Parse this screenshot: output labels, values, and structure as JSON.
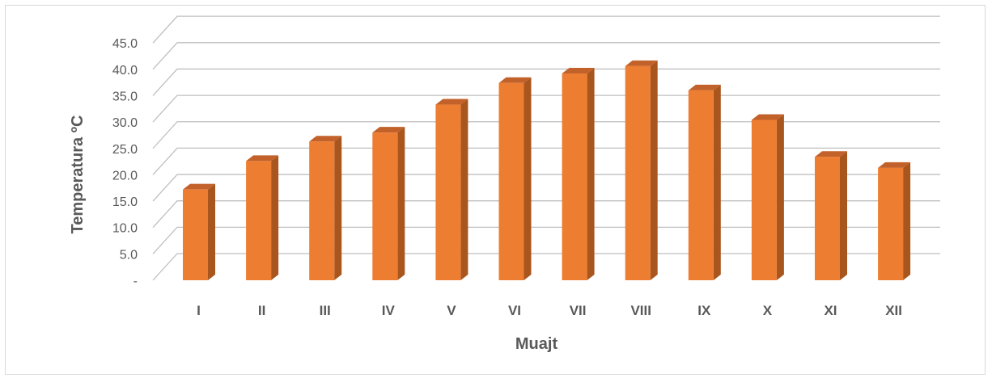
{
  "chart_data": {
    "type": "bar",
    "style": "3d-column",
    "title": "",
    "xlabel": "Muajt",
    "ylabel": "Temperatura ºC",
    "categories": [
      "I",
      "II",
      "III",
      "IV",
      "V",
      "VI",
      "VII",
      "VIII",
      "IX",
      "X",
      "XI",
      "XII"
    ],
    "values": [
      17.2,
      22.6,
      26.3,
      28.0,
      33.3,
      37.4,
      39.2,
      40.6,
      36.0,
      30.4,
      23.4,
      21.3
    ],
    "ylim": [
      0,
      45
    ],
    "yticks": [
      "-",
      "5.0",
      "10.0",
      "15.0",
      "20.0",
      "25.0",
      "30.0",
      "35.0",
      "40.0",
      "45.0"
    ],
    "grid": true,
    "legend": "none",
    "colors": {
      "bar_front": "#ED7D31",
      "bar_side": "#A9561E",
      "bar_top": "#C2612A",
      "grid": "#BFBFBF",
      "text": "#595959"
    }
  }
}
